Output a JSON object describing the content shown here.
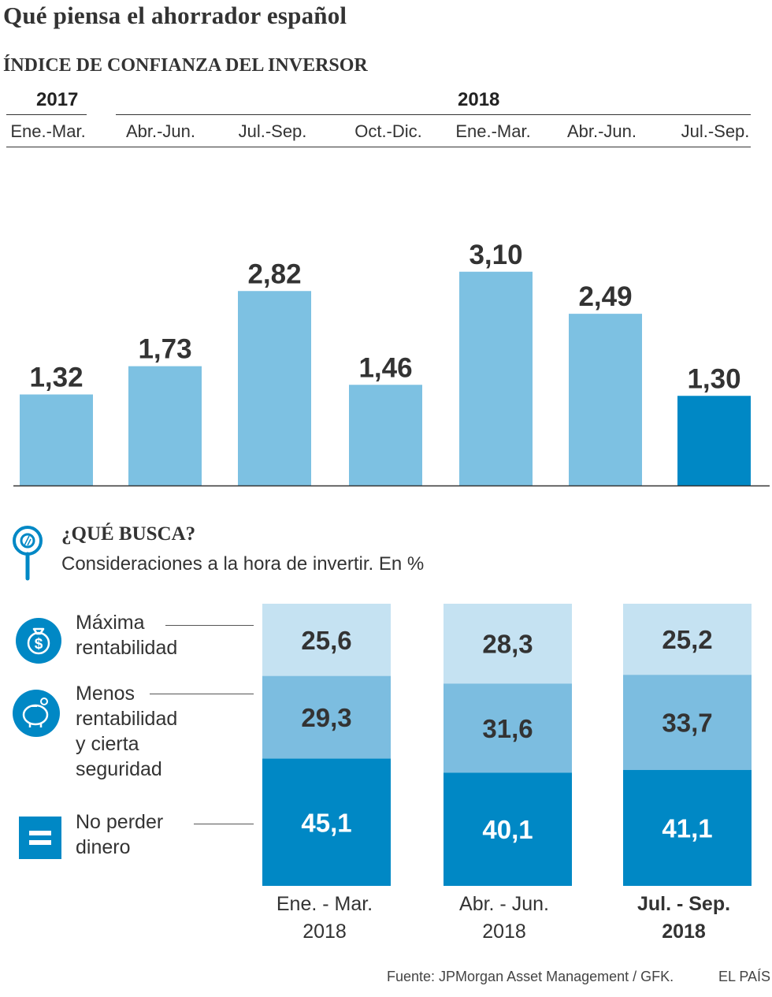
{
  "title": "Qué piensa el ahorrador español",
  "subtitle": "ÍNDICE DE CONFIANZA DEL INVERSOR",
  "colors": {
    "light_blue": "#7dc1e2",
    "dark_blue": "#0088c5",
    "pale_blue": "#c5e2f2",
    "mid_blue": "#7cbde0",
    "text": "#333333"
  },
  "icons": [
    "magnifier-icon",
    "money-bag-icon",
    "piggy-bank-icon",
    "equals-icon"
  ],
  "chart_data": [
    {
      "type": "bar",
      "year_labels": [
        "2017",
        "2018"
      ],
      "categories": [
        "Ene.-Mar.",
        "Abr.-Jun.",
        "Jul.-Sep.",
        "Oct.-Dic.",
        "Ene.-Mar.",
        "Abr.-Jun.",
        "Jul.-Sep."
      ],
      "values": [
        1.32,
        1.73,
        2.82,
        1.46,
        3.1,
        2.49,
        1.3
      ],
      "value_labels": [
        "1,32",
        "1,73",
        "2,82",
        "1,46",
        "3,10",
        "2,49",
        "1,30"
      ],
      "highlight_index": 6,
      "ylim": [
        0,
        3.6
      ],
      "grid": false
    },
    {
      "type": "bar",
      "stacked": true,
      "title": "¿QUÉ BUSCA?",
      "subtitle": "Consideraciones a la hora de invertir. En %",
      "categories": [
        {
          "line1": "Ene. - Mar.",
          "line2": "2018",
          "bold": false
        },
        {
          "line1": "Abr. - Jun.",
          "line2": "2018",
          "bold": false
        },
        {
          "line1": "Jul. - Sep.",
          "line2": "2018",
          "bold": true
        }
      ],
      "series": [
        {
          "name": "Máxima rentabilidad",
          "label_lines": [
            "Máxima",
            "rentabilidad"
          ],
          "values": [
            25.6,
            28.3,
            25.2
          ],
          "value_labels": [
            "25,6",
            "28,3",
            "25,2"
          ]
        },
        {
          "name": "Menos rentabilidad y cierta seguridad",
          "label_lines": [
            "Menos",
            "rentabilidad",
            "y cierta",
            "seguridad"
          ],
          "values": [
            29.3,
            31.6,
            33.7
          ],
          "value_labels": [
            "29,3",
            "31,6",
            "33,7"
          ]
        },
        {
          "name": "No perder dinero",
          "label_lines": [
            "No perder",
            "dinero"
          ],
          "values": [
            45.1,
            40.1,
            41.1
          ],
          "value_labels": [
            "45,1",
            "40,1",
            "41,1"
          ]
        }
      ],
      "ylim": [
        0,
        100
      ]
    }
  ],
  "footer": {
    "source": "Fuente: JPMorgan Asset Management / GFK.",
    "brand": "EL PAÍS"
  }
}
